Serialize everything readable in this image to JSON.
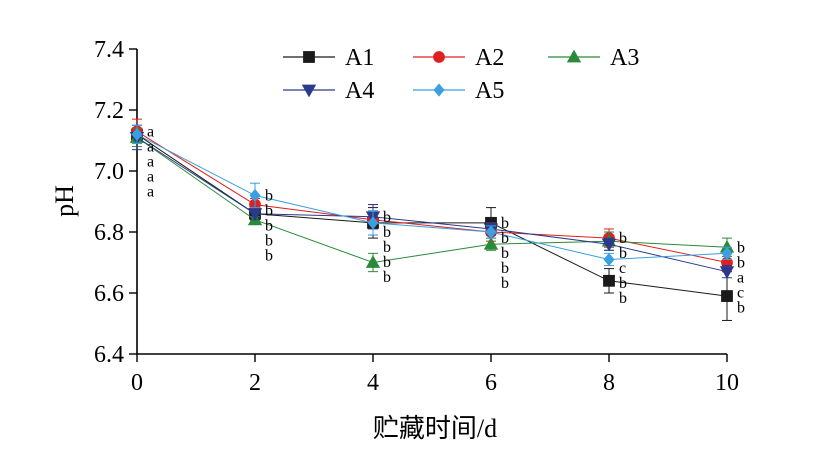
{
  "chart_data": {
    "type": "line",
    "title": "",
    "xlabel": "贮藏时间/d",
    "ylabel": "pH",
    "xlim": [
      0,
      10
    ],
    "ylim": [
      6.4,
      7.4
    ],
    "xticks": [
      0,
      2,
      4,
      6,
      8,
      10
    ],
    "yticks": [
      6.4,
      6.6,
      6.8,
      7.0,
      7.2,
      7.4
    ],
    "xtick_labels": [
      "0",
      "2",
      "4",
      "6",
      "8",
      "10"
    ],
    "ytick_labels": [
      "6.4",
      "6.6",
      "6.8",
      "7.0",
      "7.2",
      "7.4"
    ],
    "grid": false,
    "legend_position": "top",
    "x": [
      0,
      2,
      4,
      6,
      8,
      10
    ],
    "series": [
      {
        "name": "A1",
        "color": "#1a1a1a",
        "marker": "square",
        "values": [
          7.12,
          6.86,
          6.83,
          6.83,
          6.64,
          6.59
        ],
        "errors": [
          0.02,
          0.02,
          0.05,
          0.05,
          0.04,
          0.08
        ]
      },
      {
        "name": "A2",
        "color": "#e02020",
        "marker": "circle",
        "values": [
          7.13,
          6.89,
          6.84,
          6.8,
          6.78,
          6.7
        ],
        "errors": [
          0.04,
          0.02,
          0.05,
          0.03,
          0.03,
          0.03
        ]
      },
      {
        "name": "A3",
        "color": "#2a8a3a",
        "marker": "triangle-up",
        "values": [
          7.11,
          6.84,
          6.7,
          6.76,
          6.77,
          6.75
        ],
        "errors": [
          0.03,
          0.01,
          0.03,
          0.02,
          0.03,
          0.03
        ]
      },
      {
        "name": "A4",
        "color": "#2a3a8a",
        "marker": "triangle-down",
        "values": [
          7.11,
          6.86,
          6.85,
          6.81,
          6.76,
          6.67
        ],
        "errors": [
          0.04,
          0.02,
          0.04,
          0.02,
          0.02,
          0.02
        ]
      },
      {
        "name": "A5",
        "color": "#3aa0e0",
        "marker": "diamond",
        "values": [
          7.12,
          6.92,
          6.83,
          6.8,
          6.71,
          6.73
        ],
        "errors": [
          0.03,
          0.04,
          0.04,
          0.02,
          0.02,
          0.02
        ]
      }
    ],
    "annotations": [
      {
        "x": 0,
        "labels": [
          "a",
          "a",
          "a",
          "a",
          "a"
        ]
      },
      {
        "x": 2,
        "labels": [
          "b",
          "b",
          "b",
          "b",
          "b"
        ]
      },
      {
        "x": 4,
        "labels": [
          "b",
          "b",
          "b",
          "b",
          "b"
        ]
      },
      {
        "x": 6,
        "labels": [
          "b",
          "b",
          "b",
          "b",
          "b"
        ]
      },
      {
        "x": 8,
        "labels": [
          "b",
          "b",
          "b",
          "c",
          "b"
        ]
      },
      {
        "x": 10,
        "labels": [
          "b",
          "a",
          "b",
          "c",
          "b"
        ]
      }
    ]
  }
}
